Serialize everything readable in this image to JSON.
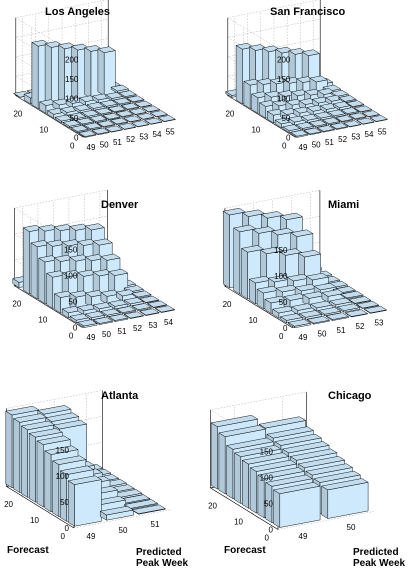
{
  "figure": {
    "bar_color": "#cde9fb",
    "axis_labels": {
      "forecast": "Forecast",
      "predicted_line1": "Predicted",
      "predicted_line2": "Peak Week"
    }
  },
  "chart_data": [
    {
      "type": "bar3d",
      "title": "Los Angeles",
      "x_ticks": [
        "49",
        "50",
        "51",
        "52",
        "53",
        "54",
        "55"
      ],
      "y_ticks": [
        "0",
        "10",
        "20"
      ],
      "z_ticks": [
        "0",
        "50",
        "100",
        "150",
        "200"
      ],
      "zlim": [
        0,
        200
      ],
      "ylim": [
        0,
        26
      ],
      "xlim": [
        49,
        55
      ],
      "x_values": [
        49,
        50,
        51,
        52,
        53,
        54,
        55
      ],
      "series": [
        {
          "y": 26,
          "values": [
            0,
            0,
            0,
            0,
            0,
            0,
            0
          ]
        },
        {
          "y": 22,
          "values": [
            15,
            12,
            10,
            8,
            6,
            4,
            2
          ]
        },
        {
          "y": 19,
          "values": [
            160,
            150,
            140,
            130,
            120,
            110,
            5
          ]
        },
        {
          "y": 16,
          "values": [
            20,
            15,
            12,
            10,
            8,
            5,
            3
          ]
        },
        {
          "y": 13,
          "values": [
            10,
            8,
            6,
            5,
            4,
            3,
            2
          ]
        },
        {
          "y": 10,
          "values": [
            5,
            4,
            4,
            3,
            2,
            2,
            1
          ]
        },
        {
          "y": 7,
          "values": [
            4,
            3,
            3,
            2,
            2,
            1,
            1
          ]
        },
        {
          "y": 4,
          "values": [
            3,
            3,
            2,
            2,
            1,
            1,
            1
          ]
        },
        {
          "y": 1,
          "values": [
            2,
            2,
            1,
            1,
            1,
            1,
            1
          ]
        }
      ]
    },
    {
      "type": "bar3d",
      "title": "San Francisco",
      "x_ticks": [
        "49",
        "50",
        "51",
        "52",
        "53",
        "54",
        "55"
      ],
      "y_ticks": [
        "0",
        "10",
        "20"
      ],
      "z_ticks": [
        "0",
        "50",
        "100",
        "150",
        "200"
      ],
      "zlim": [
        0,
        200
      ],
      "ylim": [
        0,
        26
      ],
      "xlim": [
        49,
        55
      ],
      "x_values": [
        49,
        50,
        51,
        52,
        53,
        54,
        55
      ],
      "series": [
        {
          "y": 26,
          "values": [
            5,
            0,
            0,
            0,
            0,
            0,
            0
          ]
        },
        {
          "y": 22,
          "values": [
            140,
            130,
            120,
            110,
            100,
            90,
            10
          ]
        },
        {
          "y": 19,
          "values": [
            60,
            55,
            50,
            45,
            40,
            35,
            5
          ]
        },
        {
          "y": 16,
          "values": [
            40,
            35,
            30,
            25,
            20,
            15,
            4
          ]
        },
        {
          "y": 13,
          "values": [
            30,
            25,
            20,
            15,
            12,
            10,
            3
          ]
        },
        {
          "y": 10,
          "values": [
            20,
            15,
            12,
            10,
            8,
            6,
            2
          ]
        },
        {
          "y": 7,
          "values": [
            10,
            8,
            6,
            5,
            4,
            3,
            1
          ]
        },
        {
          "y": 4,
          "values": [
            5,
            4,
            3,
            3,
            2,
            2,
            1
          ]
        },
        {
          "y": 1,
          "values": [
            3,
            2,
            2,
            2,
            1,
            1,
            1
          ]
        }
      ]
    },
    {
      "type": "bar3d",
      "title": "Denver",
      "x_ticks": [
        "49",
        "50",
        "51",
        "52",
        "53",
        "54"
      ],
      "y_ticks": [
        "0",
        "10",
        "20"
      ],
      "z_ticks": [
        "0",
        "50",
        "100",
        "150"
      ],
      "zlim": [
        0,
        150
      ],
      "ylim": [
        0,
        26
      ],
      "xlim": [
        49,
        54
      ],
      "x_values": [
        49,
        50,
        51,
        52,
        53,
        54
      ],
      "series": [
        {
          "y": 26,
          "values": [
            10,
            5,
            0,
            0,
            0,
            0
          ]
        },
        {
          "y": 22,
          "values": [
            120,
            115,
            110,
            105,
            100,
            5
          ]
        },
        {
          "y": 19,
          "values": [
            100,
            95,
            90,
            85,
            80,
            5
          ]
        },
        {
          "y": 16,
          "values": [
            80,
            75,
            70,
            65,
            60,
            4
          ]
        },
        {
          "y": 13,
          "values": [
            60,
            55,
            50,
            45,
            40,
            3
          ]
        },
        {
          "y": 10,
          "values": [
            30,
            25,
            20,
            15,
            10,
            2
          ]
        },
        {
          "y": 7,
          "values": [
            10,
            8,
            6,
            5,
            4,
            1
          ]
        },
        {
          "y": 4,
          "values": [
            5,
            4,
            3,
            2,
            2,
            1
          ]
        },
        {
          "y": 1,
          "values": [
            3,
            2,
            2,
            1,
            1,
            1
          ]
        }
      ]
    },
    {
      "type": "bar3d",
      "title": "Miami",
      "x_ticks": [
        "49",
        "50",
        "51",
        "52",
        "53"
      ],
      "y_ticks": [
        "0",
        "10",
        "20"
      ],
      "z_ticks": [
        "0",
        "50",
        "100",
        "150"
      ],
      "zlim": [
        0,
        150
      ],
      "ylim": [
        0,
        26
      ],
      "xlim": [
        49,
        53
      ],
      "x_values": [
        49,
        50,
        51,
        52,
        53
      ],
      "series": [
        {
          "y": 26,
          "values": [
            140,
            130,
            120,
            110,
            5
          ]
        },
        {
          "y": 22,
          "values": [
            120,
            110,
            100,
            90,
            4
          ]
        },
        {
          "y": 19,
          "values": [
            90,
            80,
            70,
            60,
            3
          ]
        },
        {
          "y": 16,
          "values": [
            40,
            35,
            30,
            25,
            3
          ]
        },
        {
          "y": 13,
          "values": [
            30,
            25,
            20,
            15,
            2
          ]
        },
        {
          "y": 10,
          "values": [
            20,
            18,
            15,
            12,
            2
          ]
        },
        {
          "y": 7,
          "values": [
            10,
            8,
            6,
            5,
            1
          ]
        },
        {
          "y": 4,
          "values": [
            5,
            4,
            3,
            3,
            1
          ]
        },
        {
          "y": 1,
          "values": [
            3,
            2,
            2,
            1,
            1
          ]
        }
      ]
    },
    {
      "type": "bar3d",
      "title": "Atlanta",
      "x_ticks": [
        "49",
        "50",
        "51"
      ],
      "y_ticks": [
        "0",
        "10",
        "20"
      ],
      "z_ticks": [
        "0",
        "50",
        "100",
        "150"
      ],
      "zlim": [
        0,
        150
      ],
      "ylim": [
        0,
        26
      ],
      "xlim": [
        49,
        51
      ],
      "x_values": [
        49,
        50,
        51
      ],
      "series": [
        {
          "y": 26,
          "values": [
            140,
            130,
            5
          ]
        },
        {
          "y": 23,
          "values": [
            135,
            125,
            5
          ]
        },
        {
          "y": 20,
          "values": [
            130,
            120,
            4
          ]
        },
        {
          "y": 17,
          "values": [
            125,
            50,
            4
          ]
        },
        {
          "y": 14,
          "values": [
            120,
            45,
            3
          ]
        },
        {
          "y": 11,
          "values": [
            110,
            40,
            3
          ]
        },
        {
          "y": 8,
          "values": [
            100,
            30,
            2
          ]
        },
        {
          "y": 5,
          "values": [
            90,
            20,
            2
          ]
        },
        {
          "y": 2,
          "values": [
            80,
            10,
            1
          ]
        }
      ]
    },
    {
      "type": "bar3d",
      "title": "Chicago",
      "x_ticks": [
        "49",
        "50"
      ],
      "y_ticks": [
        "0",
        "10",
        "20"
      ],
      "z_ticks": [
        "0",
        "50",
        "100",
        "150"
      ],
      "zlim": [
        0,
        150
      ],
      "ylim": [
        0,
        26
      ],
      "xlim": [
        49,
        50
      ],
      "x_values": [
        49,
        50
      ],
      "series": [
        {
          "y": 26,
          "values": [
            120,
            100
          ]
        },
        {
          "y": 23,
          "values": [
            110,
            90
          ]
        },
        {
          "y": 20,
          "values": [
            95,
            85
          ]
        },
        {
          "y": 17,
          "values": [
            90,
            80
          ]
        },
        {
          "y": 14,
          "values": [
            85,
            75
          ]
        },
        {
          "y": 11,
          "values": [
            80,
            70
          ]
        },
        {
          "y": 8,
          "values": [
            75,
            65
          ]
        },
        {
          "y": 5,
          "values": [
            70,
            60
          ]
        },
        {
          "y": 2,
          "values": [
            65,
            55
          ]
        }
      ]
    }
  ]
}
